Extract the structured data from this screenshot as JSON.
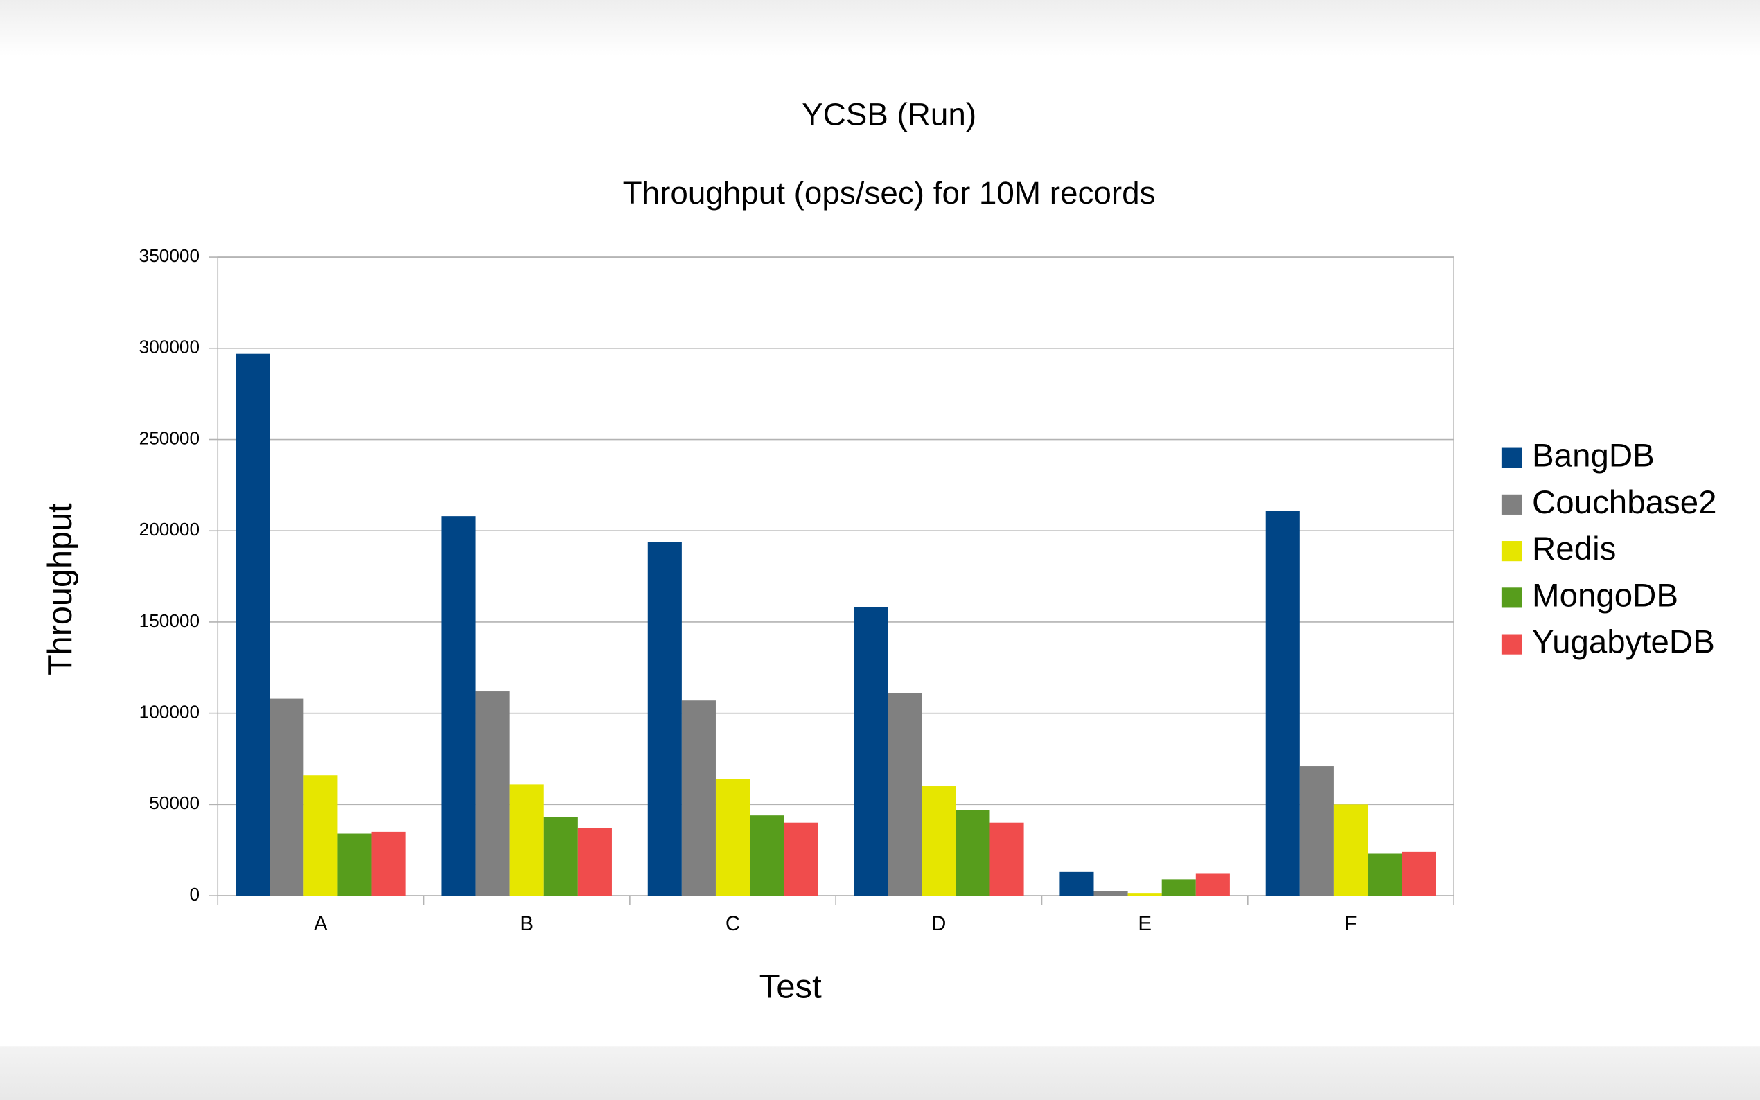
{
  "chart_data": {
    "type": "bar",
    "title": "YCSB (Run)",
    "subtitle": "Throughput (ops/sec) for 10M records",
    "x_label": "Test",
    "y_label": "Throughput",
    "categories": [
      "A",
      "B",
      "C",
      "D",
      "E",
      "F"
    ],
    "series": [
      {
        "name": "BangDB",
        "color": "#004586",
        "values": [
          297000,
          208000,
          194000,
          158000,
          13000,
          211000
        ]
      },
      {
        "name": "Couchbase2",
        "color": "#808080",
        "values": [
          108000,
          112000,
          107000,
          111000,
          2500,
          71000
        ]
      },
      {
        "name": "Redis",
        "color": "#e6e600",
        "values": [
          66000,
          61000,
          64000,
          60000,
          1500,
          50000
        ]
      },
      {
        "name": "MongoDB",
        "color": "#579d1c",
        "values": [
          34000,
          43000,
          44000,
          47000,
          9000,
          23000
        ]
      },
      {
        "name": "YugabyteDB",
        "color": "#f04c4c",
        "values": [
          35000,
          37000,
          40000,
          40000,
          12000,
          24000
        ]
      }
    ],
    "ylim": [
      0,
      350000
    ],
    "yticks": [
      0,
      50000,
      100000,
      150000,
      200000,
      250000,
      300000,
      350000
    ],
    "grid": true,
    "legend": "right"
  }
}
